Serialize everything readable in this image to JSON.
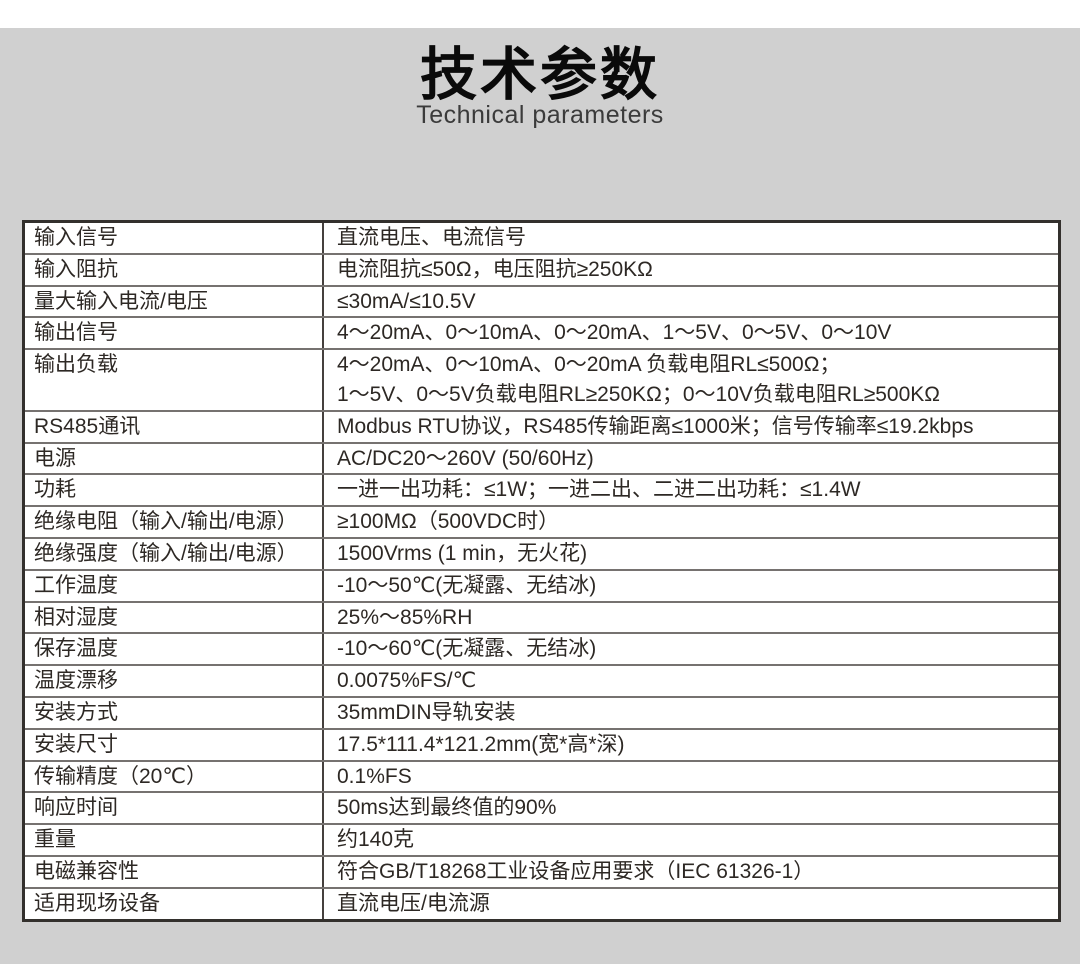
{
  "header": {
    "title": "技术参数",
    "subtitle": "Technical parameters"
  },
  "colors": {
    "page_background": "#d0d0d0",
    "top_strip": "#ffffff",
    "table_background": "#ffffff",
    "table_outer_border": "#33302d",
    "table_grid_line": "#767270",
    "text": "#2d2824"
  },
  "table": {
    "rows": [
      {
        "label": "输入信号",
        "lines": [
          "直流电压、电流信号"
        ]
      },
      {
        "label": "输入阻抗",
        "lines": [
          "电流阻抗≤50Ω，电压阻抗≥250KΩ"
        ]
      },
      {
        "label": "量大输入电流/电压",
        "lines": [
          "≤30mA/≤10.5V"
        ]
      },
      {
        "label": "输出信号",
        "lines": [
          "4～20mA、0～10mA、0～20mA、1～5V、0～5V、0～10V"
        ]
      },
      {
        "label": "输出负载",
        "lines": [
          "4～20mA、0～10mA、0～20mA 负载电阻RL≤500Ω；",
          "1～5V、0～5V负载电阻RL≥250KΩ；0～10V负载电阻RL≥500KΩ"
        ]
      },
      {
        "label": "RS485通讯",
        "lines": [
          "Modbus RTU协议，RS485传输距离≤1000米；信号传输率≤19.2kbps"
        ]
      },
      {
        "label": "电源",
        "lines": [
          "AC/DC20～260V (50/60Hz)"
        ]
      },
      {
        "label": "功耗",
        "lines": [
          "一进一出功耗：≤1W；一进二出、二进二出功耗：≤1.4W"
        ]
      },
      {
        "label": "绝缘电阻（输入/输出/电源）",
        "lines": [
          "≥100MΩ（500VDC时）"
        ]
      },
      {
        "label": "绝缘强度（输入/输出/电源）",
        "lines": [
          "1500Vrms (1 min，无火花)"
        ]
      },
      {
        "label": "工作温度",
        "lines": [
          "-10～50℃(无凝露、无结冰)"
        ]
      },
      {
        "label": "相对湿度",
        "lines": [
          "25%～85%RH"
        ]
      },
      {
        "label": "保存温度",
        "lines": [
          "-10～60℃(无凝露、无结冰)"
        ]
      },
      {
        "label": "温度漂移",
        "lines": [
          "0.0075%FS/℃"
        ]
      },
      {
        "label": "安装方式",
        "lines": [
          "35mmDIN导轨安装"
        ]
      },
      {
        "label": "安装尺寸",
        "lines": [
          "17.5*111.4*121.2mm(宽*高*深)"
        ]
      },
      {
        "label": "传输精度（20℃）",
        "lines": [
          "0.1%FS"
        ]
      },
      {
        "label": "响应时间",
        "lines": [
          "50ms达到最终值的90%"
        ]
      },
      {
        "label": "重量",
        "lines": [
          "约140克"
        ]
      },
      {
        "label": "电磁兼容性",
        "lines": [
          "符合GB/T18268工业设备应用要求（IEC 61326-1）"
        ]
      },
      {
        "label": "适用现场设备",
        "lines": [
          "直流电压/电流源"
        ]
      }
    ]
  }
}
